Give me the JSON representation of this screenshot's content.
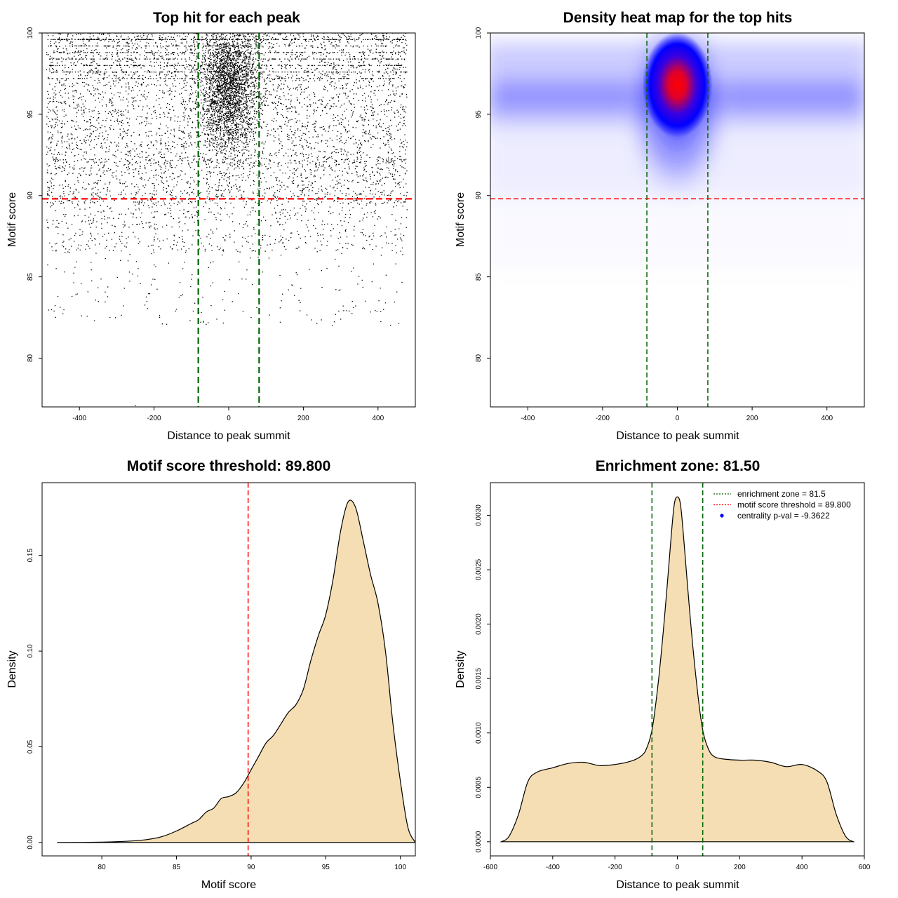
{
  "chart_data": [
    {
      "type": "scatter",
      "title": "Top hit for each peak",
      "xlabel": "Distance to peak summit",
      "ylabel": "Motif score",
      "xlim": [
        -500,
        500
      ],
      "ylim": [
        77,
        100
      ],
      "xticks": [
        -400,
        -200,
        0,
        200,
        400
      ],
      "yticks": [
        80,
        85,
        90,
        95,
        100
      ],
      "hlines": [
        {
          "y": 89.8,
          "color": "#ff0000",
          "style": "dashed"
        }
      ],
      "vlines": [
        {
          "x": -81.5,
          "color": "#006400",
          "style": "dashed"
        },
        {
          "x": 81.5,
          "color": "#006400",
          "style": "dashed"
        }
      ],
      "point_color": "#000000",
      "grid": false
    },
    {
      "type": "heatmap",
      "title": "Density heat map for the top hits",
      "xlabel": "Distance to peak summit",
      "ylabel": "Motif score",
      "xlim": [
        -500,
        500
      ],
      "ylim": [
        77,
        100
      ],
      "xticks": [
        -400,
        -200,
        0,
        200,
        400
      ],
      "yticks": [
        80,
        85,
        90,
        95,
        100
      ],
      "peak": {
        "x": 0,
        "y": 96.8
      },
      "colors": [
        "#ffffff",
        "#0000ff",
        "#ff0000"
      ],
      "hlines": [
        {
          "y": 89.8,
          "color": "#ff0000",
          "style": "dashed"
        }
      ],
      "vlines": [
        {
          "x": -81.5,
          "color": "#006400",
          "style": "dashed"
        },
        {
          "x": 81.5,
          "color": "#006400",
          "style": "dashed"
        }
      ],
      "grid": false
    },
    {
      "type": "area",
      "title": "Motif score threshold: 89.800",
      "xlabel": "Motif score",
      "ylabel": "Density",
      "xlim": [
        76,
        101
      ],
      "ylim": [
        -0.007,
        0.188
      ],
      "xticks": [
        80,
        85,
        90,
        95,
        100
      ],
      "yticks": [
        0.0,
        0.05,
        0.1,
        0.15
      ],
      "ytick_labels": [
        "0.00",
        "0.05",
        "0.10",
        "0.15"
      ],
      "fill": "#f5deb3",
      "x": [
        77,
        80,
        82,
        83,
        84,
        85,
        86,
        86.5,
        87,
        87.5,
        88,
        88.5,
        89,
        89.5,
        90,
        90.5,
        91,
        91.5,
        92,
        92.5,
        93,
        93.5,
        94,
        94.5,
        95,
        95.5,
        96,
        96.5,
        97,
        97.5,
        98,
        98.5,
        99,
        99.5,
        100,
        100.5,
        101
      ],
      "y": [
        0.0,
        0.0002,
        0.0008,
        0.0015,
        0.003,
        0.006,
        0.01,
        0.012,
        0.016,
        0.018,
        0.023,
        0.024,
        0.026,
        0.031,
        0.038,
        0.045,
        0.052,
        0.056,
        0.062,
        0.068,
        0.072,
        0.08,
        0.095,
        0.108,
        0.119,
        0.138,
        0.163,
        0.178,
        0.175,
        0.158,
        0.14,
        0.125,
        0.1,
        0.062,
        0.032,
        0.008,
        0.0
      ],
      "vlines": [
        {
          "x": 89.8,
          "color": "#ff0000",
          "style": "dashed"
        }
      ],
      "grid": false
    },
    {
      "type": "area",
      "title": "Enrichment zone: 81.50",
      "xlabel": "Distance to peak summit",
      "ylabel": "Density",
      "xlim": [
        -600,
        600
      ],
      "ylim": [
        -0.00013,
        0.0033
      ],
      "xticks": [
        -600,
        -400,
        -200,
        0,
        200,
        400,
        600
      ],
      "yticks": [
        0.0,
        0.0005,
        0.001,
        0.0015,
        0.002,
        0.0025,
        0.003
      ],
      "ytick_labels": [
        "0.0000",
        "0.0005",
        "0.0010",
        "0.0015",
        "0.0020",
        "0.0025",
        "0.0030"
      ],
      "fill": "#f5deb3",
      "x": [
        -565,
        -540,
        -510,
        -480,
        -450,
        -400,
        -350,
        -300,
        -250,
        -200,
        -150,
        -120,
        -100,
        -80,
        -60,
        -40,
        -20,
        -10,
        0,
        10,
        20,
        40,
        60,
        80,
        100,
        120,
        150,
        200,
        250,
        300,
        350,
        400,
        450,
        480,
        510,
        540,
        565
      ],
      "y": [
        0.0,
        5e-05,
        0.00025,
        0.00055,
        0.00064,
        0.00068,
        0.00072,
        0.00073,
        0.0007,
        0.00071,
        0.00074,
        0.00078,
        0.00085,
        0.00105,
        0.0015,
        0.0021,
        0.0028,
        0.0031,
        0.00317,
        0.0031,
        0.0028,
        0.0021,
        0.0015,
        0.00105,
        0.00085,
        0.00078,
        0.00076,
        0.00075,
        0.00075,
        0.00073,
        0.00069,
        0.00071,
        0.00065,
        0.00055,
        0.00025,
        5e-05,
        0.0
      ],
      "vlines": [
        {
          "x": -81.5,
          "color": "#006400",
          "style": "dashed"
        },
        {
          "x": 81.5,
          "color": "#006400",
          "style": "dashed"
        }
      ],
      "legend": {
        "placement": "top-right",
        "entries": [
          {
            "label": "enrichment zone = 81.5",
            "color": "#006400",
            "marker": "dotted-line"
          },
          {
            "label": "motif score threshold = 89.800",
            "color": "#ff0000",
            "marker": "dotted-line"
          },
          {
            "label": "centrality p-val = -9.3622",
            "color": "#0000ff",
            "marker": "point"
          }
        ]
      },
      "grid": false
    }
  ]
}
